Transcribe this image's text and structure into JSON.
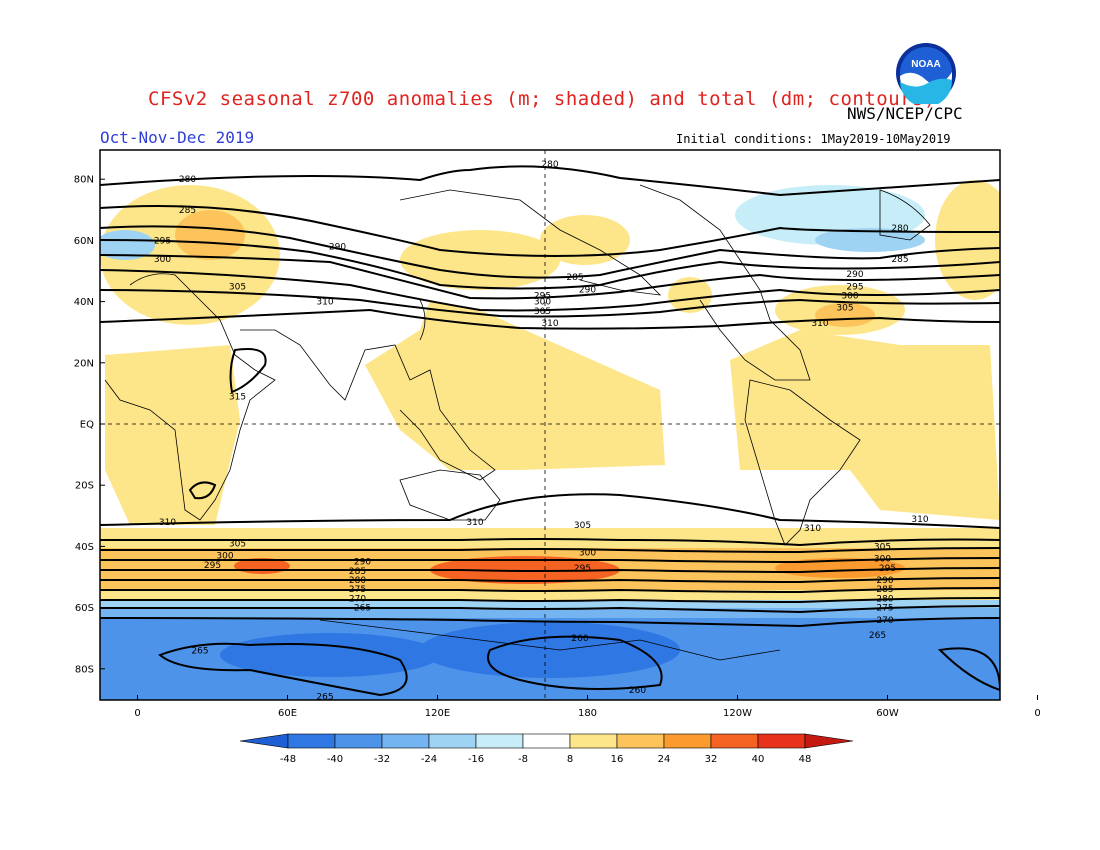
{
  "title": "CFSv2 seasonal z700 anomalies (m; shaded) and total (dm; contours)",
  "agency": "NWS/NCEP/CPC",
  "period": "Oct-Nov-Dec 2019",
  "initial_conditions": "Initial conditions: 1May2019-10May2019",
  "logo_text": "NOAA",
  "lat_labels": [
    "80N",
    "60N",
    "40N",
    "20N",
    "EQ",
    "20S",
    "40S",
    "60S",
    "80S"
  ],
  "lon_labels": [
    "0",
    "60E",
    "120E",
    "180",
    "120W",
    "60W",
    "0"
  ],
  "colorbar": {
    "ticks": [
      "-48",
      "-40",
      "-32",
      "-24",
      "-16",
      "-8",
      "8",
      "16",
      "24",
      "32",
      "40",
      "48"
    ],
    "colors": [
      "#1f5fd6",
      "#2f78e4",
      "#4d93ea",
      "#74b4f0",
      "#9fd3f4",
      "#c7eef8",
      "#ffffff",
      "#fde58a",
      "#fcc45a",
      "#fb9a2e",
      "#f56322",
      "#e8331a",
      "#c51a12"
    ]
  },
  "contour_labels": [
    {
      "text": "280",
      "lat": 80,
      "lon": 20
    },
    {
      "text": "285",
      "lat": 70,
      "lon": 20
    },
    {
      "text": "295",
      "lat": 60,
      "lon": 10
    },
    {
      "text": "300",
      "lat": 54,
      "lon": 10
    },
    {
      "text": "305",
      "lat": 45,
      "lon": 40
    },
    {
      "text": "310",
      "lat": 40,
      "lon": 75
    },
    {
      "text": "290",
      "lat": 58,
      "lon": 80
    },
    {
      "text": "280",
      "lat": 85,
      "lon": 165
    },
    {
      "text": "285",
      "lat": 48,
      "lon": 175
    },
    {
      "text": "290",
      "lat": 44,
      "lon": 180
    },
    {
      "text": "295",
      "lat": 42,
      "lon": 162
    },
    {
      "text": "300",
      "lat": 40,
      "lon": 162
    },
    {
      "text": "305",
      "lat": 37,
      "lon": 162
    },
    {
      "text": "310",
      "lat": 33,
      "lon": 165
    },
    {
      "text": "280",
      "lat": 64,
      "lon": -55
    },
    {
      "text": "285",
      "lat": 54,
      "lon": -55
    },
    {
      "text": "290",
      "lat": 49,
      "lon": -73
    },
    {
      "text": "295",
      "lat": 45,
      "lon": -73
    },
    {
      "text": "300",
      "lat": 42,
      "lon": -75
    },
    {
      "text": "305",
      "lat": 38,
      "lon": -77
    },
    {
      "text": "310",
      "lat": 33,
      "lon": -87
    },
    {
      "text": "315",
      "lat": 9,
      "lon": 40
    },
    {
      "text": "310",
      "lat": -32,
      "lon": 12
    },
    {
      "text": "310",
      "lat": -32,
      "lon": 135
    },
    {
      "text": "305",
      "lat": -33,
      "lon": 178
    },
    {
      "text": "310",
      "lat": -34,
      "lon": -90
    },
    {
      "text": "310",
      "lat": -31,
      "lon": -47
    },
    {
      "text": "305",
      "lat": -39,
      "lon": 40
    },
    {
      "text": "300",
      "lat": -43,
      "lon": 35
    },
    {
      "text": "295",
      "lat": -46,
      "lon": 30
    },
    {
      "text": "290",
      "lat": -45,
      "lon": 90
    },
    {
      "text": "285",
      "lat": -48,
      "lon": 88
    },
    {
      "text": "280",
      "lat": -51,
      "lon": 88
    },
    {
      "text": "275",
      "lat": -54,
      "lon": 88
    },
    {
      "text": "270",
      "lat": -57,
      "lon": 88
    },
    {
      "text": "265",
      "lat": -60,
      "lon": 90
    },
    {
      "text": "300",
      "lat": -42,
      "lon": 180
    },
    {
      "text": "295",
      "lat": -47,
      "lon": 178
    },
    {
      "text": "305",
      "lat": -40,
      "lon": -62
    },
    {
      "text": "300",
      "lat": -44,
      "lon": -62
    },
    {
      "text": "295",
      "lat": -47,
      "lon": -60
    },
    {
      "text": "290",
      "lat": -51,
      "lon": -61
    },
    {
      "text": "285",
      "lat": -54,
      "lon": -61
    },
    {
      "text": "280",
      "lat": -57,
      "lon": -61
    },
    {
      "text": "275",
      "lat": -60,
      "lon": -61
    },
    {
      "text": "270",
      "lat": -64,
      "lon": -61
    },
    {
      "text": "265",
      "lat": -69,
      "lon": -64
    },
    {
      "text": "265",
      "lat": -74,
      "lon": 25
    },
    {
      "text": "260",
      "lat": -70,
      "lon": 177
    },
    {
      "text": "260",
      "lat": -87,
      "lon": -160
    },
    {
      "text": "265",
      "lat": -89,
      "lon": 75
    }
  ]
}
